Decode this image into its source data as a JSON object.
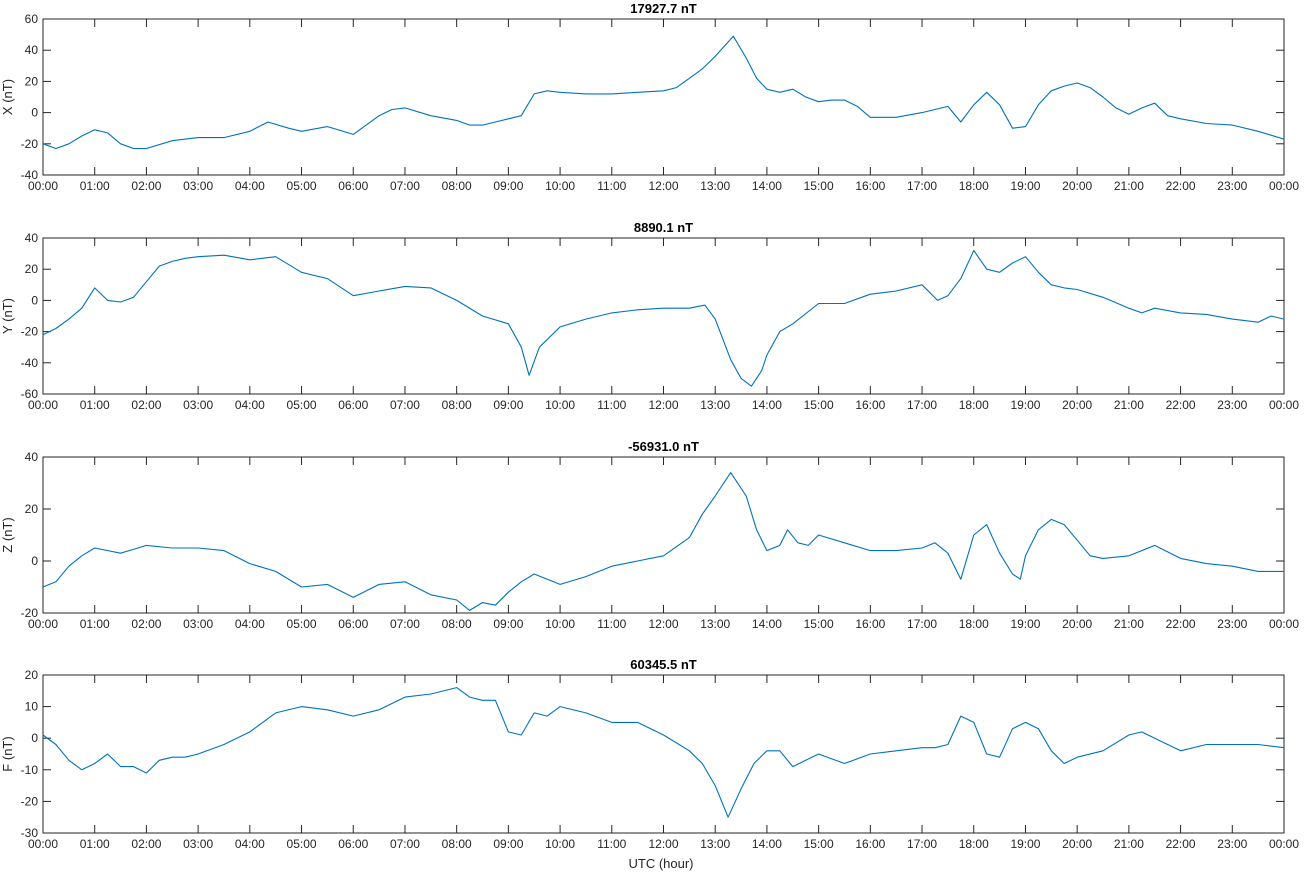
{
  "xlabel": "UTC (hour)",
  "x_tick_labels": [
    "00:00",
    "01:00",
    "02:00",
    "03:00",
    "04:00",
    "05:00",
    "06:00",
    "07:00",
    "08:00",
    "09:00",
    "10:00",
    "11:00",
    "12:00",
    "13:00",
    "14:00",
    "15:00",
    "16:00",
    "17:00",
    "18:00",
    "19:00",
    "20:00",
    "21:00",
    "22:00",
    "23:00",
    "00:00"
  ],
  "line_color": "#0072BD",
  "chart_data": [
    {
      "type": "line",
      "title": "17927.7 nT",
      "ylabel": "X (nT)",
      "ylim": [
        -40,
        60
      ],
      "yticks": [
        -40,
        -20,
        0,
        20,
        40,
        60
      ],
      "xlim": [
        0,
        24
      ],
      "x": [
        0,
        0.25,
        0.5,
        0.75,
        1.0,
        1.25,
        1.5,
        1.75,
        2.0,
        2.5,
        3.0,
        3.5,
        4.0,
        4.35,
        4.75,
        5.0,
        5.5,
        6.0,
        6.25,
        6.5,
        6.75,
        7.0,
        7.5,
        8.0,
        8.25,
        8.5,
        8.75,
        9.0,
        9.25,
        9.5,
        9.75,
        10.0,
        10.5,
        11.0,
        11.5,
        12.0,
        12.25,
        12.5,
        12.75,
        13.0,
        13.35,
        13.6,
        13.8,
        14.0,
        14.25,
        14.5,
        14.75,
        15.0,
        15.25,
        15.5,
        15.75,
        16.0,
        16.5,
        17.0,
        17.25,
        17.5,
        17.75,
        18.0,
        18.25,
        18.5,
        18.75,
        19.0,
        19.25,
        19.5,
        19.75,
        20.0,
        20.25,
        20.5,
        20.75,
        21.0,
        21.25,
        21.5,
        21.75,
        22.0,
        22.5,
        23.0,
        23.5,
        24.0
      ],
      "y": [
        -20,
        -23,
        -20,
        -15,
        -11,
        -13,
        -20,
        -23,
        -23,
        -18,
        -16,
        -16,
        -12,
        -6,
        -10,
        -12,
        -9,
        -14,
        -8,
        -2,
        2,
        3,
        -2,
        -5,
        -8,
        -8,
        -6,
        -4,
        -2,
        12,
        14,
        13,
        12,
        12,
        13,
        14,
        16,
        22,
        28,
        36,
        49,
        35,
        22,
        15,
        13,
        15,
        10,
        7,
        8,
        8,
        4,
        -3,
        -3,
        0,
        2,
        4,
        -6,
        5,
        13,
        5,
        -10,
        -9,
        5,
        14,
        17,
        19,
        16,
        10,
        3,
        -1,
        3,
        6,
        -2,
        -4,
        -7,
        -8,
        -12,
        -17
      ]
    },
    {
      "type": "line",
      "title": "8890.1 nT",
      "ylabel": "Y (nT)",
      "ylim": [
        -60,
        40
      ],
      "yticks": [
        -60,
        -40,
        -20,
        0,
        20,
        40
      ],
      "xlim": [
        0,
        24
      ],
      "x": [
        0,
        0.25,
        0.5,
        0.75,
        1.0,
        1.25,
        1.5,
        1.75,
        2.0,
        2.25,
        2.5,
        2.75,
        3.0,
        3.5,
        4.0,
        4.5,
        5.0,
        5.5,
        6.0,
        6.5,
        7.0,
        7.5,
        8.0,
        8.5,
        9.0,
        9.25,
        9.4,
        9.6,
        10.0,
        10.5,
        11.0,
        11.5,
        12.0,
        12.5,
        12.8,
        13.0,
        13.3,
        13.5,
        13.7,
        13.9,
        14.0,
        14.25,
        14.5,
        15.0,
        15.5,
        16.0,
        16.5,
        17.0,
        17.3,
        17.5,
        17.75,
        18.0,
        18.25,
        18.5,
        18.75,
        19.0,
        19.25,
        19.5,
        19.75,
        20.0,
        20.5,
        21.0,
        21.25,
        21.5,
        22.0,
        22.5,
        23.0,
        23.5,
        23.75,
        24.0
      ],
      "y": [
        -22,
        -18,
        -12,
        -5,
        8,
        0,
        -1,
        2,
        12,
        22,
        25,
        27,
        28,
        29,
        26,
        28,
        18,
        14,
        3,
        6,
        9,
        8,
        0,
        -10,
        -15,
        -30,
        -48,
        -30,
        -17,
        -12,
        -8,
        -6,
        -5,
        -5,
        -3,
        -12,
        -38,
        -50,
        -55,
        -45,
        -35,
        -20,
        -15,
        -2,
        -2,
        4,
        6,
        10,
        0,
        3,
        14,
        32,
        20,
        18,
        24,
        28,
        18,
        10,
        8,
        7,
        2,
        -5,
        -8,
        -5,
        -8,
        -9,
        -12,
        -14,
        -10,
        -12
      ]
    },
    {
      "type": "line",
      "title": "-56931.0 nT",
      "ylabel": "Z (nT)",
      "ylim": [
        -20,
        40
      ],
      "yticks": [
        -20,
        0,
        20,
        40
      ],
      "xlim": [
        0,
        24
      ],
      "x": [
        0,
        0.25,
        0.5,
        0.75,
        1.0,
        1.5,
        2.0,
        2.5,
        3.0,
        3.5,
        4.0,
        4.5,
        5.0,
        5.5,
        6.0,
        6.5,
        7.0,
        7.5,
        8.0,
        8.25,
        8.5,
        8.75,
        9.0,
        9.25,
        9.5,
        10.0,
        10.5,
        11.0,
        11.5,
        12.0,
        12.5,
        12.75,
        13.0,
        13.3,
        13.6,
        13.8,
        14.0,
        14.25,
        14.4,
        14.6,
        14.8,
        15.0,
        15.5,
        16.0,
        16.5,
        17.0,
        17.25,
        17.5,
        17.75,
        18.0,
        18.25,
        18.5,
        18.75,
        18.9,
        19.0,
        19.25,
        19.5,
        19.75,
        20.0,
        20.25,
        20.5,
        21.0,
        21.25,
        21.5,
        22.0,
        22.5,
        23.0,
        23.5,
        24.0
      ],
      "y": [
        -10,
        -8,
        -2,
        2,
        5,
        3,
        6,
        5,
        5,
        4,
        -1,
        -4,
        -10,
        -9,
        -14,
        -9,
        -8,
        -13,
        -15,
        -19,
        -16,
        -17,
        -12,
        -8,
        -5,
        -9,
        -6,
        -2,
        0,
        2,
        9,
        18,
        25,
        34,
        25,
        12,
        4,
        6,
        12,
        7,
        6,
        10,
        7,
        4,
        4,
        5,
        7,
        3,
        -7,
        10,
        14,
        3,
        -5,
        -7,
        2,
        12,
        16,
        14,
        8,
        2,
        1,
        2,
        4,
        6,
        1,
        -1,
        -2,
        -4,
        -4
      ]
    },
    {
      "type": "line",
      "title": "60345.5 nT",
      "ylabel": "F (nT)",
      "ylim": [
        -30,
        20
      ],
      "yticks": [
        -30,
        -20,
        -10,
        0,
        10,
        20
      ],
      "xlim": [
        0,
        24
      ],
      "x": [
        0,
        0.25,
        0.5,
        0.75,
        1.0,
        1.25,
        1.5,
        1.75,
        2.0,
        2.25,
        2.5,
        2.75,
        3.0,
        3.5,
        4.0,
        4.5,
        5.0,
        5.5,
        6.0,
        6.5,
        7.0,
        7.5,
        8.0,
        8.25,
        8.5,
        8.75,
        9.0,
        9.25,
        9.5,
        9.75,
        10.0,
        10.5,
        11.0,
        11.5,
        12.0,
        12.5,
        12.75,
        13.0,
        13.25,
        13.5,
        13.75,
        14.0,
        14.25,
        14.5,
        14.75,
        15.0,
        15.5,
        16.0,
        16.5,
        17.0,
        17.25,
        17.5,
        17.75,
        18.0,
        18.25,
        18.5,
        18.75,
        19.0,
        19.25,
        19.5,
        19.75,
        20.0,
        20.5,
        21.0,
        21.25,
        21.5,
        22.0,
        22.5,
        23.0,
        23.5,
        24.0
      ],
      "y": [
        1,
        -2,
        -7,
        -10,
        -8,
        -5,
        -9,
        -9,
        -11,
        -7,
        -6,
        -6,
        -5,
        -2,
        2,
        8,
        10,
        9,
        7,
        9,
        13,
        14,
        16,
        13,
        12,
        12,
        2,
        1,
        8,
        7,
        10,
        8,
        5,
        5,
        1,
        -4,
        -8,
        -15,
        -25,
        -16,
        -8,
        -4,
        -4,
        -9,
        -7,
        -5,
        -8,
        -5,
        -4,
        -3,
        -3,
        -2,
        7,
        5,
        -5,
        -6,
        3,
        5,
        3,
        -4,
        -8,
        -6,
        -4,
        1,
        2,
        0,
        -4,
        -2,
        -2,
        -2,
        -3
      ]
    }
  ]
}
